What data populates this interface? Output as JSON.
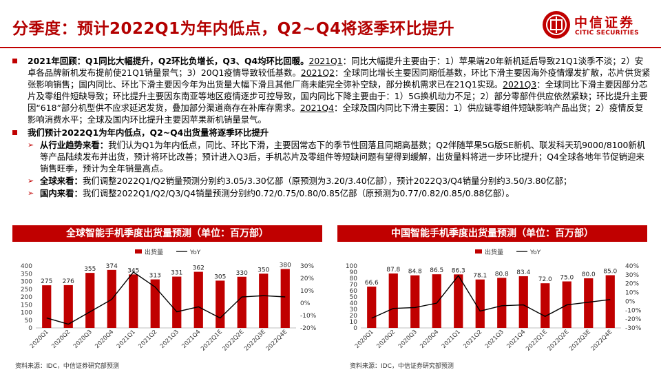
{
  "title": "分季度：预计2022Q1为年内低点，Q2~Q4将逐季环比提升",
  "logo": {
    "cn": "中信证券",
    "en": "CITIC SECURITIES"
  },
  "bullet1": {
    "head": "2021年回顾：Q1同比大幅提升，Q2环比负增长，Q3、Q4均环比回暖。",
    "q1_tag": "2021Q1",
    "q1_text": "：同比大幅提升主要由于：1）苹果端20年新机延后导致21Q1淡季不淡；2）安卓各品牌新机发布提前使21Q1销量景气；3）20Q1疫情导致较低基数。",
    "q2_tag": "2021Q2",
    "q2_text": "：全球同比增长主要因同期低基数，环比下滑主要因海外疫情爆发扩散，芯片供货紧张影响销售；国内同比、环比下滑主要因今年为出货量大幅下滑且其他厂商未能完全弥补空缺，部分换机需求已在21Q1实现。",
    "q3_tag": "2021Q3",
    "q3_text": "：全球同比下滑主要因部分芯片及零组件短缺导致；环比提升主要因东南亚等地区疫情逐步可控导致，国内同比下降主要由于：1）5G换机动力不足；2）部分零部件供应依然紧缺；环比提升主要因“618”部分机型供不应求延迟发货，叠加部分渠道商存在补库存需求。",
    "q4_tag": "2021Q4",
    "q4_text": "：全球及国内同比下滑主要因：1）供应链零组件短缺影响产品出货；2）疫情反复影响消费水平；全球及国内环比提升主要因苹果新机销量景气。"
  },
  "bullet2": {
    "head": "我们预计2022Q1为年内低点，Q2~Q4出货量将逐季环比提升",
    "sub1_head": "从行业趋势来看：",
    "sub1_text": "我们认为Q1为年内低点，同比、环比下滑，主要因常态下的季节性回落且同期高基数；Q2伴随苹果5G版SE新机、联发科天玑9000/8100新机等产品陆续发布并出货，预计将环比改善；预计进入Q3后，手机芯片及零组件等短缺问题有望得到缓解，出货量料将进一步环比提升；Q4全球各地年节促销迎来销售旺季，预计为全年销量高点。",
    "sub2_head": "全球来看：",
    "sub2_text": "我们调整2022Q1/Q2销量预测分别约3.05/3.30亿部（原预测为3.20/3.40亿部），预计2022Q3/Q4销量分别约3.50/3.80亿部；",
    "sub3_head": "国内来看：",
    "sub3_text": "我们调整2022Q1/Q2/Q3/Q4销量预测分别约0.72/0.75/0.80/0.85亿部（原预测为0.77/0.82/0.85/0.88亿部）。"
  },
  "charts_meta": {
    "global_header": "全球智能手机季度出货量预测（单位：百万部）",
    "china_header": "中国智能手机季度出货量预测（单位：百万部）",
    "source": "资料来源：IDC，中信证券研究部预测",
    "bar_color": "#c00000",
    "line_color": "#000000"
  },
  "chart_data": [
    {
      "type": "bar",
      "title": "全球智能手机季度出货量预测（单位：百万部）",
      "legend": [
        "出货量",
        "YoY"
      ],
      "categories": [
        "2020Q1",
        "2020Q2",
        "2020Q3",
        "2020Q4",
        "2021Q1",
        "2021Q2",
        "2021Q3",
        "2021Q4",
        "2022Q1E",
        "2022Q2E",
        "2022Q3E",
        "2022Q4E"
      ],
      "series": [
        {
          "name": "出货量",
          "axis": "left",
          "values": [
            275,
            276,
            355,
            374,
            345,
            313,
            331,
            362,
            305,
            330,
            350,
            380
          ]
        },
        {
          "name": "YoY",
          "axis": "right",
          "type": "line",
          "values": [
            -12,
            -17,
            -7,
            3,
            25,
            13,
            -7,
            -3,
            -12,
            5,
            6,
            5
          ]
        }
      ],
      "ylim": [
        0,
        400
      ],
      "yticks": [
        0,
        50,
        100,
        150,
        200,
        250,
        300,
        350,
        400
      ],
      "y2lim": [
        -20,
        30
      ],
      "y2ticks": [
        "30%",
        "20%",
        "10%",
        "0%",
        "-10%",
        "-20%"
      ]
    },
    {
      "type": "bar",
      "title": "中国智能手机季度出货量预测（单位：百万部）",
      "legend": [
        "出货量",
        "YoY"
      ],
      "categories": [
        "2020Q1",
        "2020Q2",
        "2020Q3",
        "2020Q4",
        "2021Q1",
        "2021Q2",
        "2021Q3",
        "2021Q4",
        "2022Q1E",
        "2022Q2E",
        "2022Q3E",
        "2022Q4E"
      ],
      "series": [
        {
          "name": "出货量",
          "axis": "left",
          "values": [
            66.6,
            87.8,
            84.8,
            86.5,
            86.3,
            78.1,
            80.8,
            83.4,
            72.0,
            75.0,
            80.0,
            85.0
          ]
        },
        {
          "name": "YoY",
          "axis": "right",
          "type": "line",
          "values": [
            -19,
            -8,
            -7,
            -2,
            29,
            -11,
            -5,
            -4,
            -17,
            -4,
            -1,
            2
          ]
        }
      ],
      "ylim": [
        0,
        100
      ],
      "yticks": [
        0,
        10,
        20,
        30,
        40,
        50,
        60,
        70,
        80,
        90,
        100
      ],
      "y2lim": [
        -30,
        40
      ],
      "y2ticks": [
        "40%",
        "30%",
        "20%",
        "10%",
        "0%",
        "-10%",
        "-20%",
        "-30%"
      ]
    }
  ]
}
